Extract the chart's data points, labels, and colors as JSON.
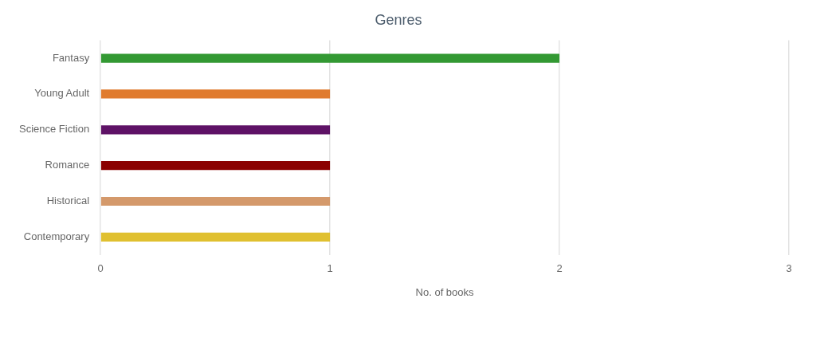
{
  "chart_data": {
    "type": "bar",
    "orientation": "horizontal",
    "title": "Genres",
    "xlabel": "No. of books",
    "categories": [
      "Fantasy",
      "Young Adult",
      "Science Fiction",
      "Romance",
      "Historical",
      "Contemporary"
    ],
    "values": [
      2,
      1,
      1,
      1,
      1,
      1
    ],
    "colors": [
      "#339933",
      "#e07b2e",
      "#5e1266",
      "#8b0000",
      "#d4996b",
      "#e0c030"
    ],
    "xlim": [
      0,
      3
    ],
    "xticks": [
      0,
      1,
      2,
      3
    ],
    "grid": "x",
    "legend": false
  }
}
